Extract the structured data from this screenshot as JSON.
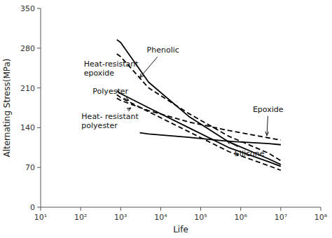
{
  "chart_data": {
    "type": "line",
    "xlabel": "Life",
    "ylabel": "Alternating Stress(MPa)",
    "log": "x",
    "grid": false,
    "color": "#000000",
    "xlim": [
      10,
      100000000
    ],
    "xticks": [
      {
        "value": 10,
        "label": "10¹"
      },
      {
        "value": 100,
        "label": "10²"
      },
      {
        "value": 1000,
        "label": "10³"
      },
      {
        "value": 10000,
        "label": "10⁴"
      },
      {
        "value": 100000,
        "label": "10⁵"
      },
      {
        "value": 1000000,
        "label": "10⁶"
      },
      {
        "value": 10000000,
        "label": "10⁷"
      },
      {
        "value": 100000000,
        "label": "10⁸"
      }
    ],
    "ylim": [
      0,
      350
    ],
    "yticks": [
      0,
      70,
      140,
      210,
      280,
      350
    ],
    "series": [
      {
        "line_style": "solid",
        "x": [
          800,
          1000,
          5000,
          50000,
          500000,
          5000000,
          10000000
        ],
        "values": [
          295,
          290,
          220,
          160,
          115,
          85,
          75
        ]
      },
      {
        "line_style": "dashed",
        "x": [
          800,
          1000,
          5000,
          50000,
          500000,
          5000000,
          10000000
        ],
        "values": [
          270,
          265,
          210,
          165,
          125,
          95,
          82
        ]
      },
      {
        "line_style": "solid",
        "x": [
          800,
          1000,
          5000,
          50000,
          500000,
          5000000,
          10000000
        ],
        "values": [
          205,
          200,
          175,
          140,
          105,
          80,
          72
        ]
      },
      {
        "line_style": "dashed",
        "x": [
          800,
          1000,
          5000,
          50000,
          500000,
          5000000,
          10000000
        ],
        "values": [
          198,
          193,
          168,
          133,
          98,
          73,
          65
        ]
      },
      {
        "line_style": "dashed",
        "x": [
          800,
          1000,
          5000,
          50000,
          500000,
          5000000,
          10000000
        ],
        "values": [
          192,
          188,
          170,
          150,
          135,
          122,
          118
        ]
      },
      {
        "line_style": "solid",
        "x": [
          3000,
          5000,
          50000,
          500000,
          5000000,
          10000000
        ],
        "values": [
          131,
          129,
          123,
          116,
          112,
          110
        ]
      }
    ],
    "annotations": [
      {
        "text": "Phenolic",
        "xy": [
          3000,
          228
        ],
        "xytext": [
          4500,
          272
        ]
      },
      {
        "text": "Heat-resistant\nepoxide",
        "xy": [
          910,
          263
        ],
        "xytext": [
          120,
          248
        ]
      },
      {
        "text": "Polyester",
        "xy": [
          1600,
          188
        ],
        "xytext": [
          200,
          200
        ]
      },
      {
        "text": "Heat- resistant\npolyester",
        "xy": [
          1800,
          175
        ],
        "xytext": [
          105,
          155
        ]
      },
      {
        "text": "Epoxide",
        "xy": [
          4500000,
          126
        ],
        "xytext": [
          2000000,
          168
        ]
      },
      {
        "text": "Silicone",
        "xy": [
          450000,
          117
        ],
        "xytext": [
          700000,
          90
        ]
      }
    ]
  }
}
